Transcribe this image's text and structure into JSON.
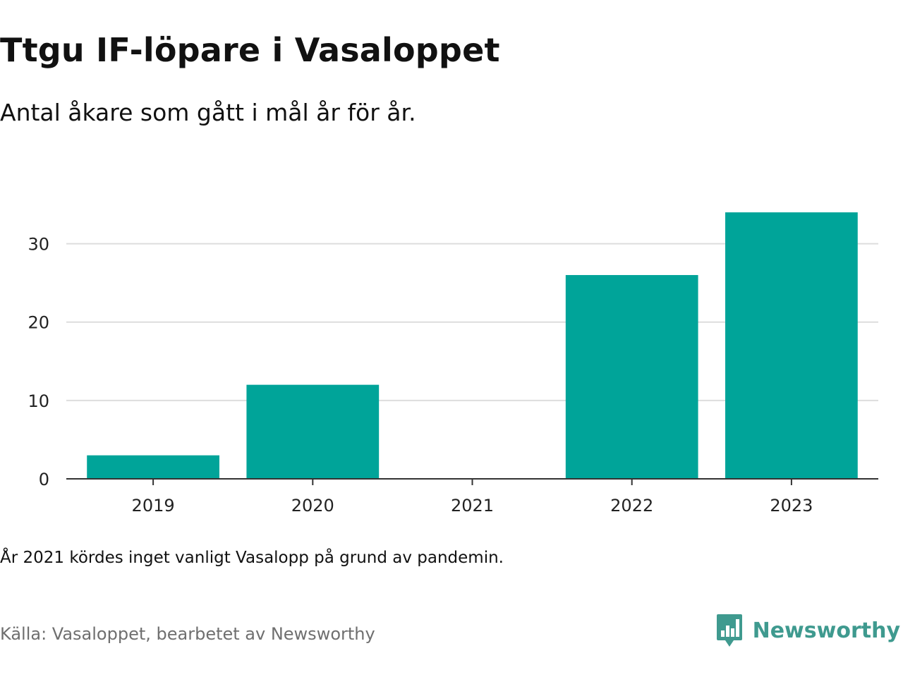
{
  "header": {
    "title": "Ttgu IF-löpare i Vasaloppet",
    "subtitle": "Antal åkare som gått i mål år för år."
  },
  "footer": {
    "note": "År 2021 kördes inget vanligt Vasalopp på grund av pandemin.",
    "source": "Källa: Vasaloppet, bearbetet av Newsworthy",
    "brand_name": "Newsworthy",
    "brand_icon": "bar-chart-speech-bubble-icon"
  },
  "colors": {
    "bar": "#00a499",
    "grid": "#dddddd",
    "axis": "#333333",
    "brand": "#3f9a8f"
  },
  "chart_data": {
    "type": "bar",
    "categories": [
      "2019",
      "2020",
      "2021",
      "2022",
      "2023"
    ],
    "values": [
      3,
      12,
      0,
      26,
      34
    ],
    "ylim": [
      0,
      35
    ],
    "yticks": [
      0,
      10,
      20,
      30
    ],
    "xlabel": "",
    "ylabel": "",
    "grid": true
  }
}
